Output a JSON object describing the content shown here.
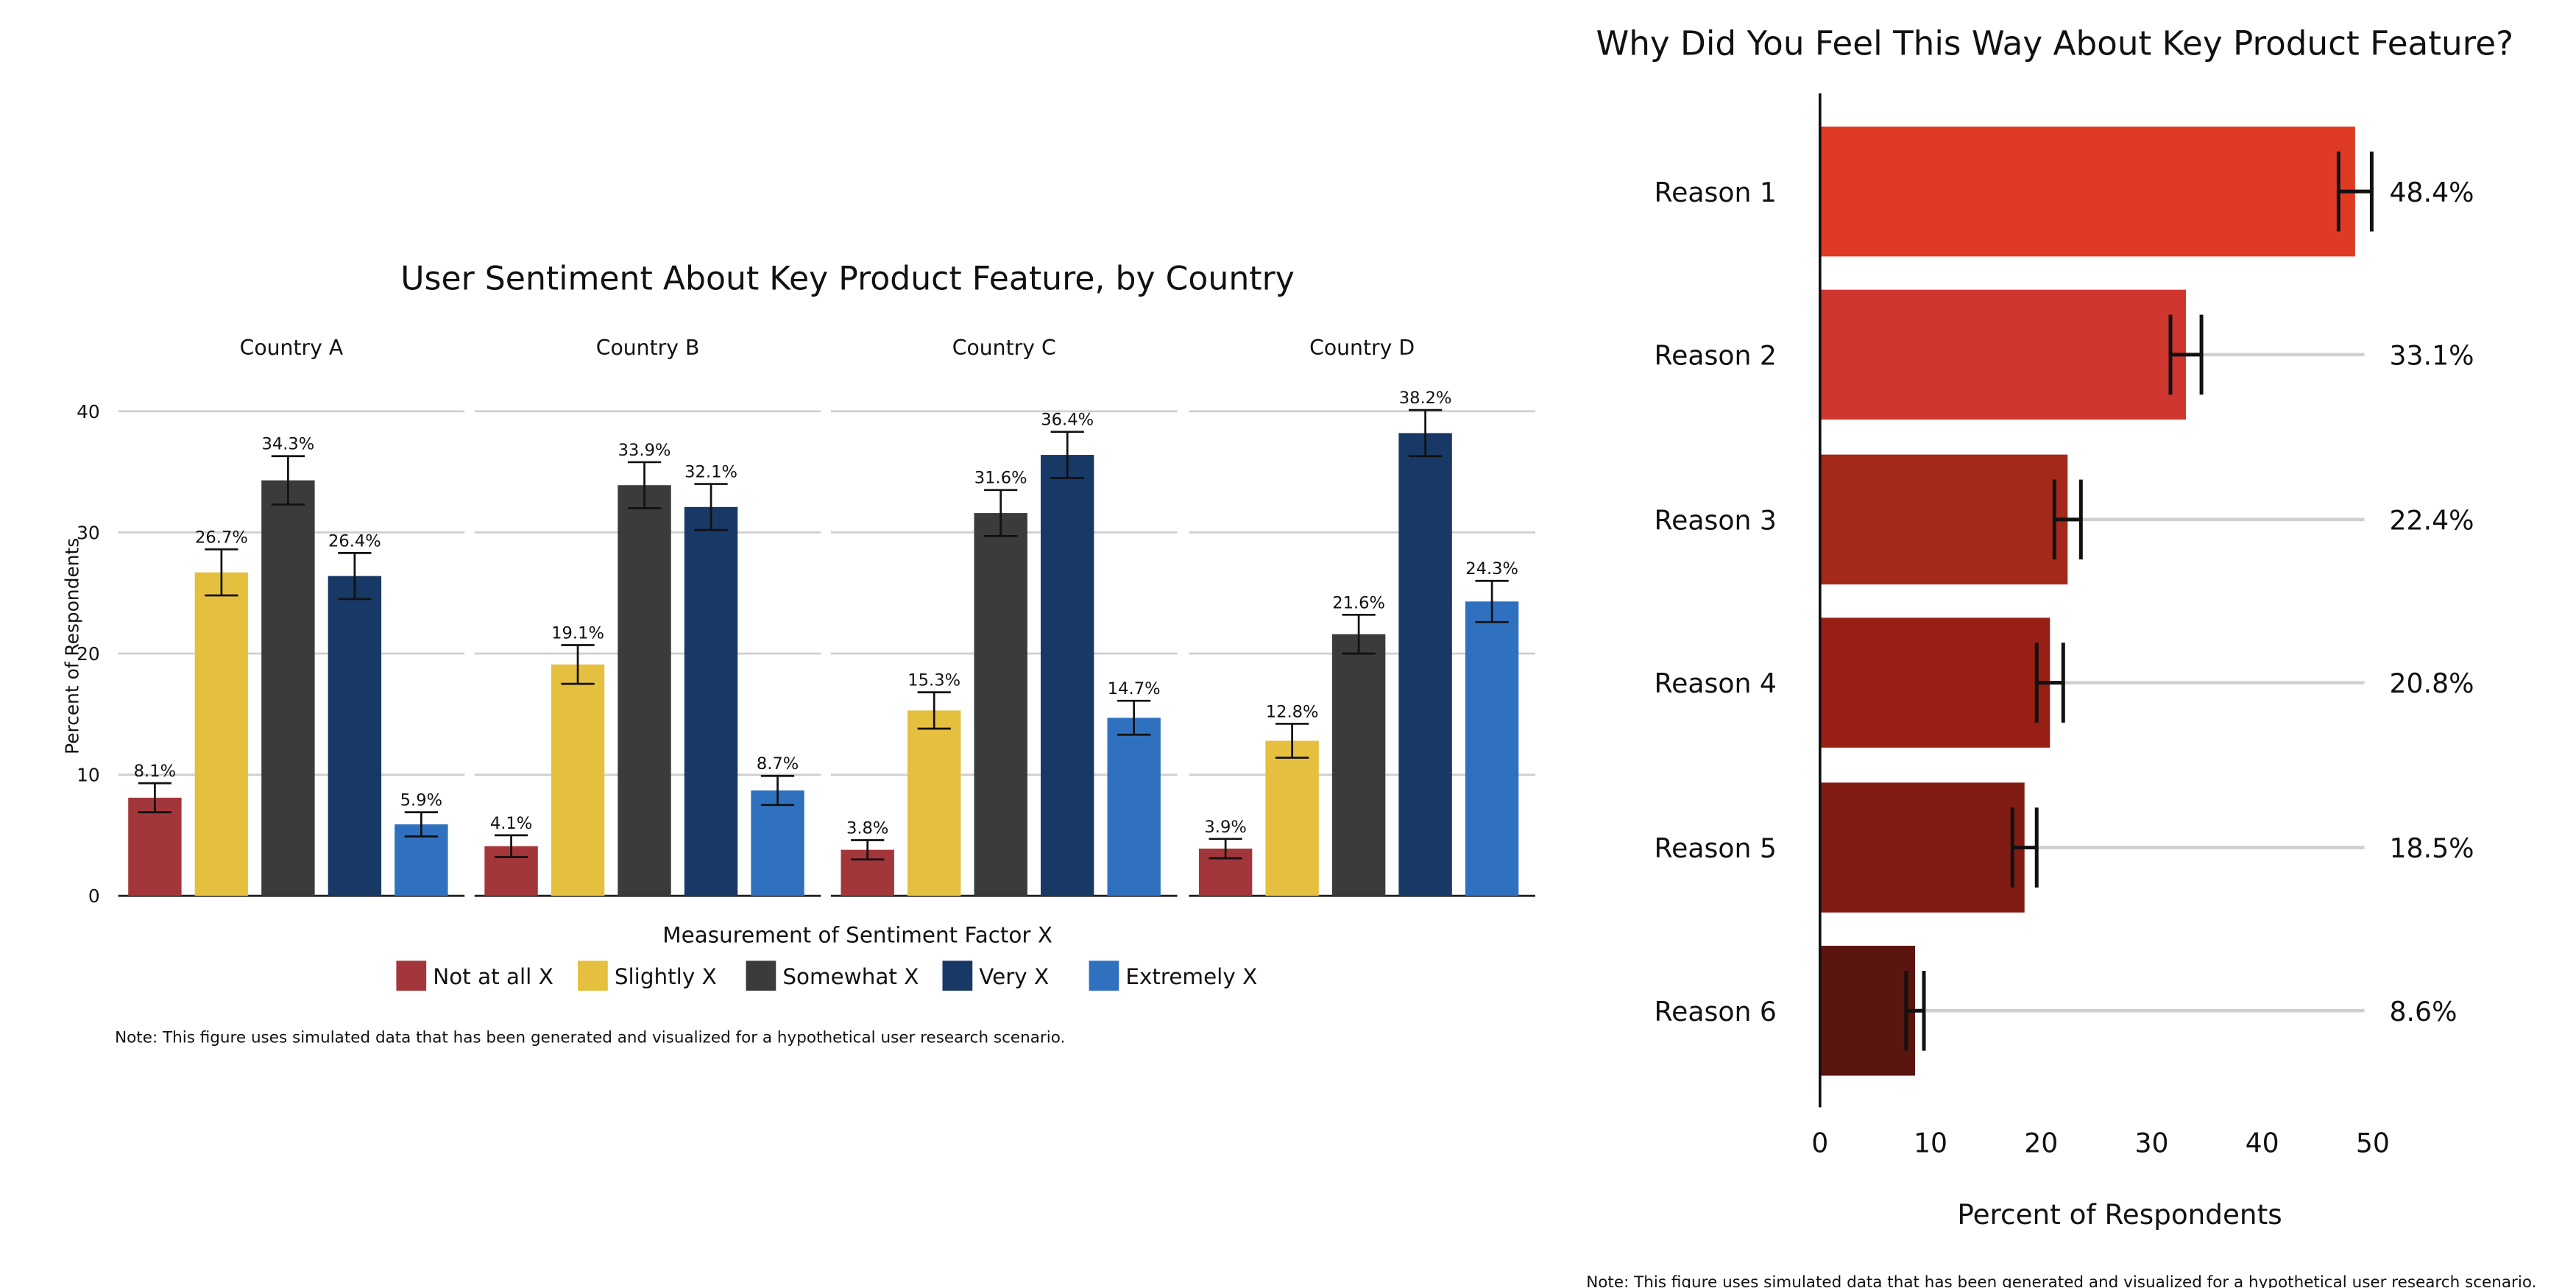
{
  "chart_data": [
    {
      "type": "bar",
      "title": "User Sentiment About Key Product Feature, by Country",
      "ylabel": "Percent of Respondents",
      "xlabel": "Measurement of Sentiment Factor X",
      "ylim": [
        0,
        40
      ],
      "yticks": [
        0,
        10,
        20,
        30,
        40
      ],
      "grid": true,
      "legend_position": "bottom",
      "facets": [
        "Country A",
        "Country B",
        "Country C",
        "Country D"
      ],
      "series": [
        {
          "name": "Not at all X",
          "color": "#A3363A",
          "labels": [
            "8.1%",
            "4.1%",
            "3.8%",
            "3.9%"
          ],
          "values": [
            8.1,
            4.1,
            3.8,
            3.9
          ],
          "error": [
            1.2,
            0.9,
            0.8,
            0.8
          ]
        },
        {
          "name": "Slightly X",
          "color": "#E5C03F",
          "labels": [
            "26.7%",
            "19.1%",
            "15.3%",
            "12.8%"
          ],
          "values": [
            26.7,
            19.1,
            15.3,
            12.8
          ],
          "error": [
            1.9,
            1.6,
            1.5,
            1.4
          ]
        },
        {
          "name": "Somewhat X",
          "color": "#3B3B3B",
          "labels": [
            "34.3%",
            "33.9%",
            "31.6%",
            "21.6%"
          ],
          "values": [
            34.3,
            33.9,
            31.6,
            21.6
          ],
          "error": [
            2.0,
            1.9,
            1.9,
            1.6
          ]
        },
        {
          "name": "Very X",
          "color": "#183965",
          "labels": [
            "26.4%",
            "32.1%",
            "36.4%",
            "38.2%"
          ],
          "values": [
            26.4,
            32.1,
            36.4,
            38.2
          ],
          "error": [
            1.9,
            1.9,
            1.9,
            1.9
          ]
        },
        {
          "name": "Extremely X",
          "color": "#3071BF",
          "labels": [
            "5.9%",
            "8.7%",
            "14.7%",
            "24.3%"
          ],
          "values": [
            5.9,
            8.7,
            14.7,
            24.3
          ],
          "error": [
            1.0,
            1.2,
            1.4,
            1.7
          ]
        }
      ],
      "note": "Note: This figure uses simulated data that has been generated and visualized for a hypothetical user research scenario."
    },
    {
      "type": "bar",
      "orientation": "horizontal",
      "title": "Why Did You Feel This Way About Key Product Feature?",
      "xlabel": "Percent of Respondents",
      "xlim": [
        0,
        50
      ],
      "xticks": [
        0,
        10,
        20,
        30,
        40,
        50
      ],
      "grid": true,
      "categories": [
        "Reason  1",
        "Reason 2",
        "Reason 3",
        "Reason 4",
        "Reason 5",
        "Reason 6"
      ],
      "values": [
        48.4,
        33.1,
        22.4,
        20.8,
        18.5,
        8.6
      ],
      "labels": [
        "48.4%",
        "33.1%",
        "22.4%",
        "20.8%",
        "18.5%",
        "8.6%"
      ],
      "error": [
        1.5,
        1.4,
        1.2,
        1.2,
        1.1,
        0.8
      ],
      "colors": [
        "#DF3B24",
        "#CF3630",
        "#A3291A",
        "#981F14",
        "#811C14",
        "#5A150E"
      ],
      "note": "Note: This figure uses simulated data that has been generated and visualized for a hypothetical user research scenario."
    }
  ]
}
